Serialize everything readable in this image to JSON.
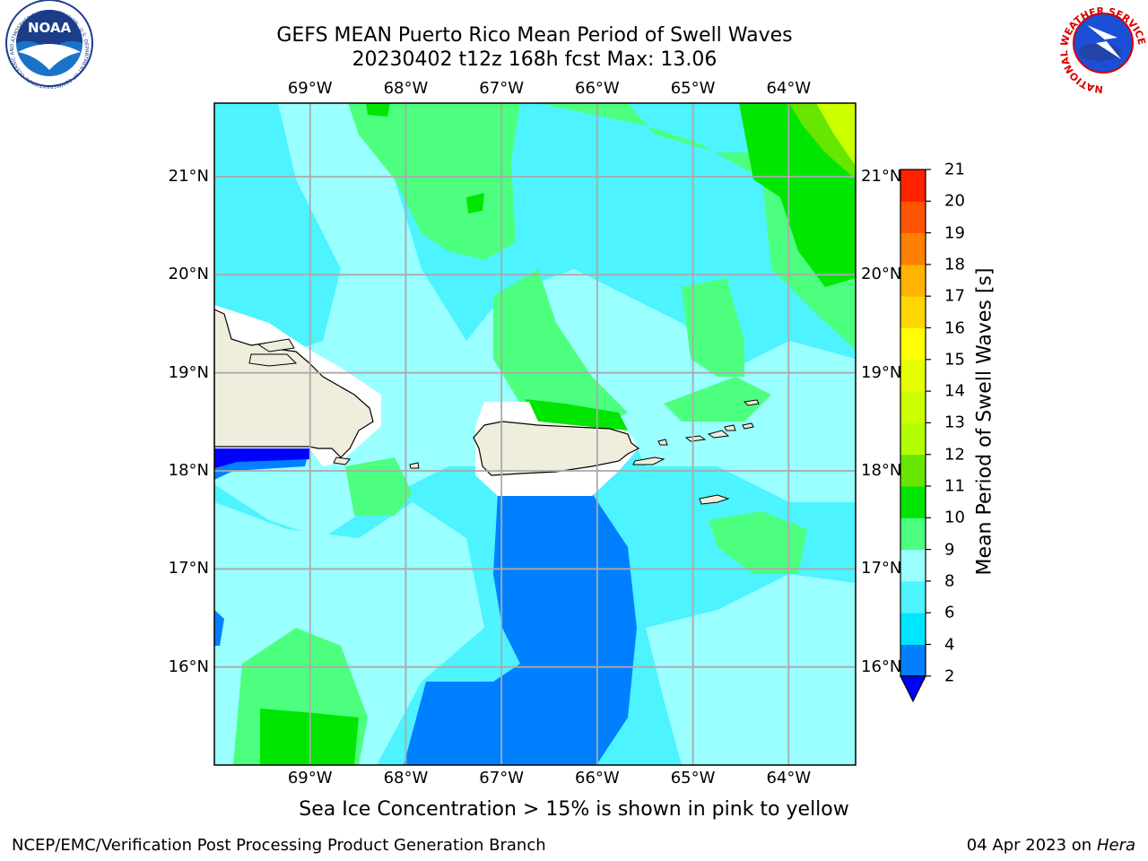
{
  "header": {
    "title_line1": "GEFS MEAN Puerto Rico Mean Period of Swell Waves",
    "title_line2": "20230402 t12z 168h fcst   Max: 13.06"
  },
  "logos": {
    "left": {
      "name": "noaa-logo",
      "text": "NOAA",
      "ring_text": "NATIONAL OCEANIC AND ATMOSPHERIC ADMINISTRATION · U.S. DEPARTMENT OF COMMERCE"
    },
    "right": {
      "name": "nws-logo",
      "ring_text": "NATIONAL WEATHER SERVICE"
    }
  },
  "map": {
    "lon_labels": [
      "69°W",
      "68°W",
      "67°W",
      "66°W",
      "65°W",
      "64°W"
    ],
    "lon_values": [
      -69,
      -68,
      -67,
      -66,
      -65,
      -64
    ],
    "lat_labels": [
      "21°N",
      "20°N",
      "19°N",
      "18°N",
      "17°N",
      "16°N"
    ],
    "lat_values": [
      21,
      20,
      19,
      18,
      17,
      16
    ],
    "extent": {
      "lon_min": -70.0,
      "lon_max": -63.3,
      "lat_min": 15.0,
      "lat_max": 21.75
    },
    "grid": true
  },
  "colorbar": {
    "label": "Mean Period of Swell Waves [s]",
    "ticks": [
      "2",
      "4",
      "6",
      "8",
      "9",
      "10",
      "11",
      "12",
      "13",
      "14",
      "15",
      "16",
      "17",
      "18",
      "19",
      "20",
      "21"
    ],
    "colors": [
      "#0080ff",
      "#00e5ff",
      "#4df3ff",
      "#99ffff",
      "#4dff7f",
      "#00e600",
      "#66e600",
      "#b3ff00",
      "#ccff00",
      "#e6ff00",
      "#ffff00",
      "#ffd700",
      "#ffb300",
      "#ff8000",
      "#ff5500",
      "#ff2200",
      "#ff0000"
    ],
    "under_color": "#0000ff"
  },
  "caption": "Sea Ice Concentration > 15% is shown in pink to yellow",
  "footer": {
    "left": "NCEP/EMC/Verification Post Processing Product Generation Branch",
    "right_date": "04 Apr 2023 on ",
    "right_host": "Hera"
  }
}
